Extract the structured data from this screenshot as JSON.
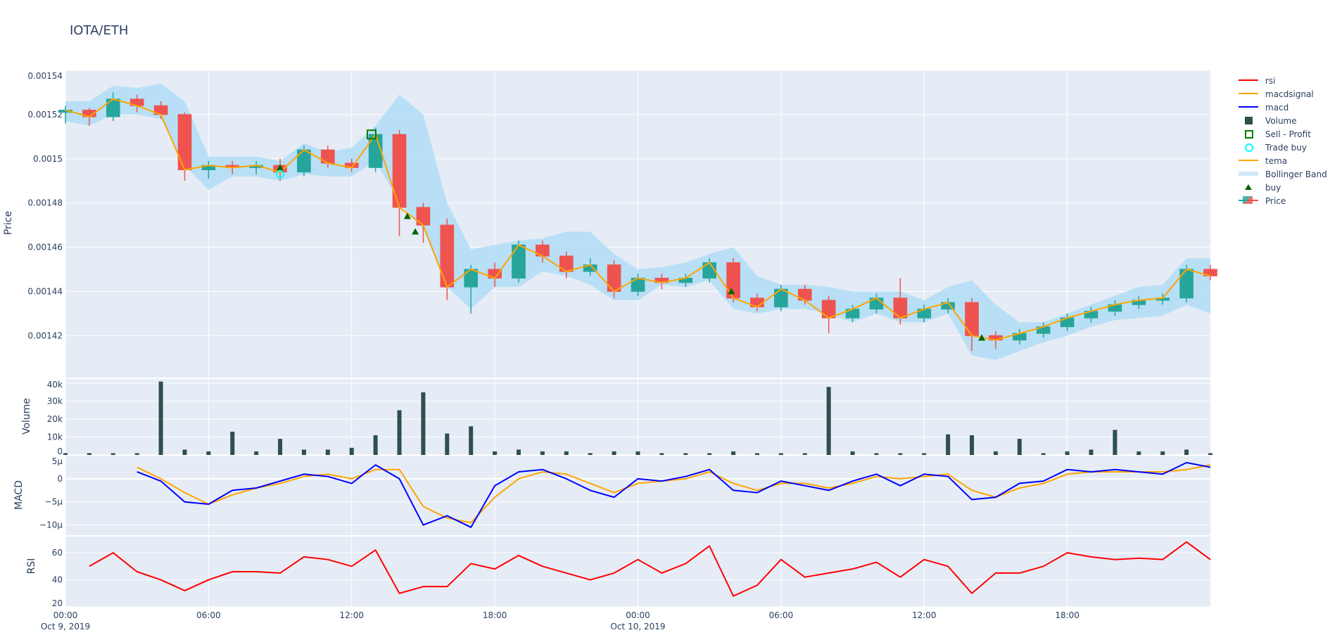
{
  "title": "IOTA/ETH",
  "colors": {
    "background": "#E5ECF6",
    "grid": "#FFFFFF",
    "increasing": "#26A69A",
    "decreasing": "#EF5350",
    "band": "#B3DEF5",
    "tema": "#FFA500",
    "macd": "#0000FF",
    "macdsignal": "#FFA500",
    "rsi": "#FF0000",
    "volume": "#2F4F4F",
    "buy": "#006400",
    "trade_buy": "#00FFFF",
    "sell_profit": "#008000"
  },
  "legend": [
    {
      "label": "rsi",
      "icon": "line-red"
    },
    {
      "label": "macdsignal",
      "icon": "line-orange"
    },
    {
      "label": "macd",
      "icon": "line-blue"
    },
    {
      "label": "Volume",
      "icon": "square-darkslategray"
    },
    {
      "label": "Sell - Profit",
      "icon": "square-open-green"
    },
    {
      "label": "Trade buy",
      "icon": "circle-open-cyan"
    },
    {
      "label": "tema",
      "icon": "line-orange"
    },
    {
      "label": "Bollinger Band",
      "icon": "band-lightblue"
    },
    {
      "label": "buy",
      "icon": "triangle-up-darkgreen"
    },
    {
      "label": "Price",
      "icon": "candlestick"
    }
  ],
  "chart_data": {
    "type": "candlestick-subplots",
    "x": [
      "2019-10-09 00:00",
      "2019-10-09 01:00",
      "2019-10-09 02:00",
      "2019-10-09 03:00",
      "2019-10-09 04:00",
      "2019-10-09 05:00",
      "2019-10-09 06:00",
      "2019-10-09 07:00",
      "2019-10-09 08:00",
      "2019-10-09 09:00",
      "2019-10-09 10:00",
      "2019-10-09 11:00",
      "2019-10-09 12:00",
      "2019-10-09 13:00",
      "2019-10-09 14:00",
      "2019-10-09 15:00",
      "2019-10-09 16:00",
      "2019-10-09 17:00",
      "2019-10-09 18:00",
      "2019-10-09 19:00",
      "2019-10-09 20:00",
      "2019-10-09 21:00",
      "2019-10-09 22:00",
      "2019-10-09 23:00",
      "2019-10-10 00:00",
      "2019-10-10 01:00",
      "2019-10-10 02:00",
      "2019-10-10 03:00",
      "2019-10-10 04:00",
      "2019-10-10 05:00",
      "2019-10-10 06:00",
      "2019-10-10 07:00",
      "2019-10-10 08:00",
      "2019-10-10 09:00",
      "2019-10-10 10:00",
      "2019-10-10 11:00",
      "2019-10-10 12:00",
      "2019-10-10 13:00",
      "2019-10-10 14:00",
      "2019-10-10 15:00",
      "2019-10-10 16:00",
      "2019-10-10 17:00",
      "2019-10-10 18:00",
      "2019-10-10 19:00",
      "2019-10-10 20:00",
      "2019-10-10 21:00",
      "2019-10-10 22:00",
      "2019-10-10 23:00",
      "2019-10-11 00:00"
    ],
    "xrange": [
      "2019-10-09 00:00",
      "2019-10-11 00:00"
    ],
    "xticks": [
      {
        "at": "2019-10-09 00:00",
        "label": "00:00",
        "date": "Oct 9, 2019"
      },
      {
        "at": "2019-10-09 06:00",
        "label": "06:00",
        "date": ""
      },
      {
        "at": "2019-10-09 12:00",
        "label": "12:00",
        "date": ""
      },
      {
        "at": "2019-10-09 18:00",
        "label": "18:00",
        "date": ""
      },
      {
        "at": "2019-10-10 00:00",
        "label": "00:00",
        "date": "Oct 10, 2019"
      },
      {
        "at": "2019-10-10 06:00",
        "label": "06:00",
        "date": ""
      },
      {
        "at": "2019-10-10 12:00",
        "label": "12:00",
        "date": ""
      },
      {
        "at": "2019-10-10 18:00",
        "label": "18:00",
        "date": ""
      }
    ],
    "panels": {
      "price": {
        "ylabel": "Price",
        "ylim": [
          0.001401,
          0.00154
        ],
        "ticks": [
          0.00142,
          0.00144,
          0.00146,
          0.00148,
          0.0015,
          0.00152,
          0.00154
        ],
        "tick_labels": [
          "0.00142",
          "0.00144",
          "0.00146",
          "0.00148",
          "0.0015",
          "0.00152",
          "0.00154"
        ]
      },
      "volume": {
        "ylabel": "Volume",
        "ylim": [
          0,
          42400
        ],
        "ticks": [
          0,
          10000,
          20000,
          30000,
          40000
        ],
        "tick_labels": [
          "0",
          "10k",
          "20k",
          "30k",
          "40k"
        ]
      },
      "macd": {
        "ylabel": "MACD",
        "ylim": [
          -1.22e-05,
          5e-06
        ],
        "ticks": [
          5e-06,
          0,
          -5e-06,
          -1e-05
        ],
        "tick_labels": [
          "5µ",
          "0",
          "−5µ",
          "−10µ"
        ]
      },
      "rsi": {
        "ylabel": "RSI",
        "ylim": [
          20,
          72
        ],
        "ticks": [
          20,
          40,
          60
        ],
        "tick_labels": [
          "20",
          "40",
          "60"
        ]
      }
    },
    "close": [
      0.001522,
      0.001519,
      0.001527,
      0.001524,
      0.00152,
      0.001495,
      0.001497,
      0.001496,
      0.001497,
      0.001494,
      0.001504,
      0.001498,
      0.001496,
      0.001511,
      0.001478,
      0.00147,
      0.001442,
      0.00145,
      0.001446,
      0.001461,
      0.001456,
      0.001449,
      0.001452,
      0.00144,
      0.001446,
      0.001444,
      0.001446,
      0.001453,
      0.001437,
      0.001433,
      0.001441,
      0.001436,
      0.001428,
      0.001432,
      0.001437,
      0.001428,
      0.001432,
      0.001435,
      0.00142,
      0.001418,
      0.001421,
      0.001424,
      0.001428,
      0.001431,
      0.001434,
      0.001436,
      0.001437,
      0.00145,
      0.001447
    ],
    "open": [
      0.001521,
      0.001522,
      0.001519,
      0.001527,
      0.001524,
      0.00152,
      0.001495,
      0.001497,
      0.001496,
      0.001497,
      0.001494,
      0.001504,
      0.001498,
      0.001496,
      0.001511,
      0.001478,
      0.00147,
      0.001442,
      0.00145,
      0.001446,
      0.001461,
      0.001456,
      0.001449,
      0.001452,
      0.00144,
      0.001446,
      0.001444,
      0.001446,
      0.001453,
      0.001437,
      0.001433,
      0.001441,
      0.001436,
      0.001428,
      0.001432,
      0.001437,
      0.001428,
      0.001432,
      0.001435,
      0.00142,
      0.001418,
      0.001421,
      0.001424,
      0.001428,
      0.001431,
      0.001434,
      0.001436,
      0.001437,
      0.00145
    ],
    "high": [
      0.001524,
      0.001523,
      0.00153,
      0.001529,
      0.001526,
      0.001521,
      0.001499,
      0.001499,
      0.001499,
      0.0015,
      0.001506,
      0.001506,
      0.0015,
      0.001514,
      0.001513,
      0.00148,
      0.001473,
      0.001452,
      0.001453,
      0.001463,
      0.001463,
      0.001458,
      0.001455,
      0.001454,
      0.001448,
      0.001448,
      0.001448,
      0.001455,
      0.001455,
      0.001439,
      0.001443,
      0.001443,
      0.001438,
      0.001434,
      0.001439,
      0.001446,
      0.001434,
      0.001437,
      0.001437,
      0.001422,
      0.001423,
      0.001426,
      0.00143,
      0.001433,
      0.001436,
      0.001438,
      0.001439,
      0.001452,
      0.001452
    ],
    "low": [
      0.001516,
      0.001515,
      0.001517,
      0.001521,
      0.001518,
      0.00149,
      0.001491,
      0.001493,
      0.001493,
      0.00149,
      0.001492,
      0.001496,
      0.001494,
      0.001494,
      0.001465,
      0.001462,
      0.001436,
      0.00143,
      0.001442,
      0.001444,
      0.001453,
      0.001446,
      0.001447,
      0.001437,
      0.001438,
      0.001441,
      0.001442,
      0.001444,
      0.001435,
      0.001431,
      0.001431,
      0.001434,
      0.001421,
      0.001426,
      0.00143,
      0.001425,
      0.001426,
      0.00143,
      0.001413,
      0.001414,
      0.001416,
      0.001419,
      0.001422,
      0.001426,
      0.001429,
      0.001432,
      0.001434,
      0.001435,
      0.001445
    ],
    "tema": [
      0.001522,
      0.001519,
      0.001527,
      0.001524,
      0.00152,
      0.001495,
      0.001497,
      0.001496,
      0.001497,
      0.001494,
      0.001504,
      0.001498,
      0.001496,
      0.001511,
      0.001478,
      0.00147,
      0.001442,
      0.00145,
      0.001446,
      0.001461,
      0.001456,
      0.001449,
      0.001452,
      0.00144,
      0.001446,
      0.001444,
      0.001446,
      0.001453,
      0.001437,
      0.001433,
      0.001441,
      0.001436,
      0.001428,
      0.001432,
      0.001437,
      0.001428,
      0.001432,
      0.001435,
      0.00142,
      0.001418,
      0.001421,
      0.001424,
      0.001428,
      0.001431,
      0.001434,
      0.001436,
      0.001437,
      0.00145,
      0.001447
    ],
    "bb_upper": [
      0.001526,
      0.001526,
      0.001533,
      0.001532,
      0.001534,
      0.001526,
      0.001501,
      0.001501,
      0.001501,
      0.001499,
      0.001507,
      0.001503,
      0.001505,
      0.001515,
      0.001529,
      0.00152,
      0.00148,
      0.001459,
      0.001461,
      0.001463,
      0.001464,
      0.001467,
      0.001467,
      0.001457,
      0.00145,
      0.001451,
      0.001453,
      0.001457,
      0.00146,
      0.001447,
      0.001443,
      0.001443,
      0.001442,
      0.00144,
      0.00144,
      0.00144,
      0.001436,
      0.001442,
      0.001445,
      0.001434,
      0.001426,
      0.001426,
      0.00143,
      0.001434,
      0.001438,
      0.001442,
      0.001443,
      0.001455,
      0.001455
    ],
    "bb_lower": [
      0.001517,
      0.001515,
      0.00152,
      0.00152,
      0.001518,
      0.001497,
      0.001486,
      0.001492,
      0.001492,
      0.00149,
      0.001493,
      0.001492,
      0.001492,
      0.001499,
      0.00148,
      0.001468,
      0.001442,
      0.001432,
      0.001442,
      0.001442,
      0.001449,
      0.001447,
      0.001443,
      0.001436,
      0.001436,
      0.001443,
      0.001442,
      0.001445,
      0.001432,
      0.00143,
      0.001432,
      0.001432,
      0.00143,
      0.001426,
      0.00143,
      0.001426,
      0.001426,
      0.00143,
      0.001411,
      0.001409,
      0.001413,
      0.001417,
      0.00142,
      0.001424,
      0.001427,
      0.001428,
      0.001429,
      0.001434,
      0.00143
    ],
    "volume": [
      1000,
      1000,
      1000,
      1000,
      41000,
      3000,
      2000,
      13000,
      2000,
      9000,
      3000,
      3000,
      4000,
      11000,
      25000,
      35000,
      12000,
      16000,
      2000,
      3000,
      2000,
      2000,
      1000,
      2000,
      2000,
      1000,
      1000,
      1000,
      2000,
      1000,
      1000,
      1000,
      38000,
      2000,
      1000,
      1000,
      1000,
      11500,
      11000,
      2000,
      9000,
      1000,
      2000,
      3000,
      14000,
      2000,
      2000,
      3000,
      1000
    ],
    "macd": [
      null,
      null,
      null,
      1.5e-06,
      -5e-07,
      -5e-06,
      -5.5e-06,
      -2.5e-06,
      -2e-06,
      -5e-07,
      1e-06,
      5e-07,
      -1e-06,
      3e-06,
      0,
      -1e-05,
      -8e-06,
      -1.05e-05,
      -1.5e-06,
      1.5e-06,
      2e-06,
      0,
      -2.5e-06,
      -4e-06,
      0,
      -5e-07,
      5e-07,
      2e-06,
      -2.5e-06,
      -3e-06,
      -5e-07,
      -1.5e-06,
      -2.5e-06,
      -5e-07,
      1e-06,
      -1.5e-06,
      1e-06,
      5e-07,
      -4.5e-06,
      -4e-06,
      -1e-06,
      -5e-07,
      2e-06,
      1.5e-06,
      2e-06,
      1.5e-06,
      1e-06,
      3.5e-06,
      2.5e-06
    ],
    "macdsignal": [
      null,
      null,
      null,
      2.5e-06,
      0,
      -3e-06,
      -5.5e-06,
      -3.5e-06,
      -2e-06,
      -1e-06,
      5e-07,
      1e-06,
      0,
      2e-06,
      2e-06,
      -6e-06,
      -8.5e-06,
      -9.5e-06,
      -4e-06,
      0,
      1.5e-06,
      1e-06,
      -1e-06,
      -3e-06,
      -1e-06,
      -5e-07,
      0,
      1.5e-06,
      -1e-06,
      -2.5e-06,
      -1e-06,
      -1e-06,
      -2e-06,
      -1e-06,
      5e-07,
      0,
      5e-07,
      1e-06,
      -2.5e-06,
      -4e-06,
      -2e-06,
      -1e-06,
      1e-06,
      1.5e-06,
      1.5e-06,
      1.5e-06,
      1.5e-06,
      2e-06,
      3e-06
    ],
    "rsi": [
      null,
      50,
      60,
      46,
      40,
      32,
      40,
      46,
      46,
      45,
      57,
      55,
      50,
      62,
      30,
      35,
      35,
      52,
      48,
      58,
      50,
      45,
      40,
      45,
      55,
      45,
      52,
      65,
      28,
      36,
      55,
      42,
      45,
      48,
      53,
      42,
      55,
      50,
      30,
      45,
      45,
      50,
      60,
      57,
      55,
      56,
      55,
      68,
      55
    ],
    "buy": [
      {
        "x": "2019-10-09 09:00",
        "y": 0.001496
      },
      {
        "x": "2019-10-09 14:20",
        "y": 0.001474
      },
      {
        "x": "2019-10-09 14:40",
        "y": 0.001467
      },
      {
        "x": "2019-10-10 03:55",
        "y": 0.00144
      },
      {
        "x": "2019-10-10 14:25",
        "y": 0.001419
      }
    ],
    "trade_buy": [
      {
        "x": "2019-10-09 09:00",
        "y": 0.001493
      }
    ],
    "sell_profit": [
      {
        "x": "2019-10-09 12:50",
        "y": 0.001511
      }
    ],
    "grid": true,
    "legend_position": "right"
  }
}
